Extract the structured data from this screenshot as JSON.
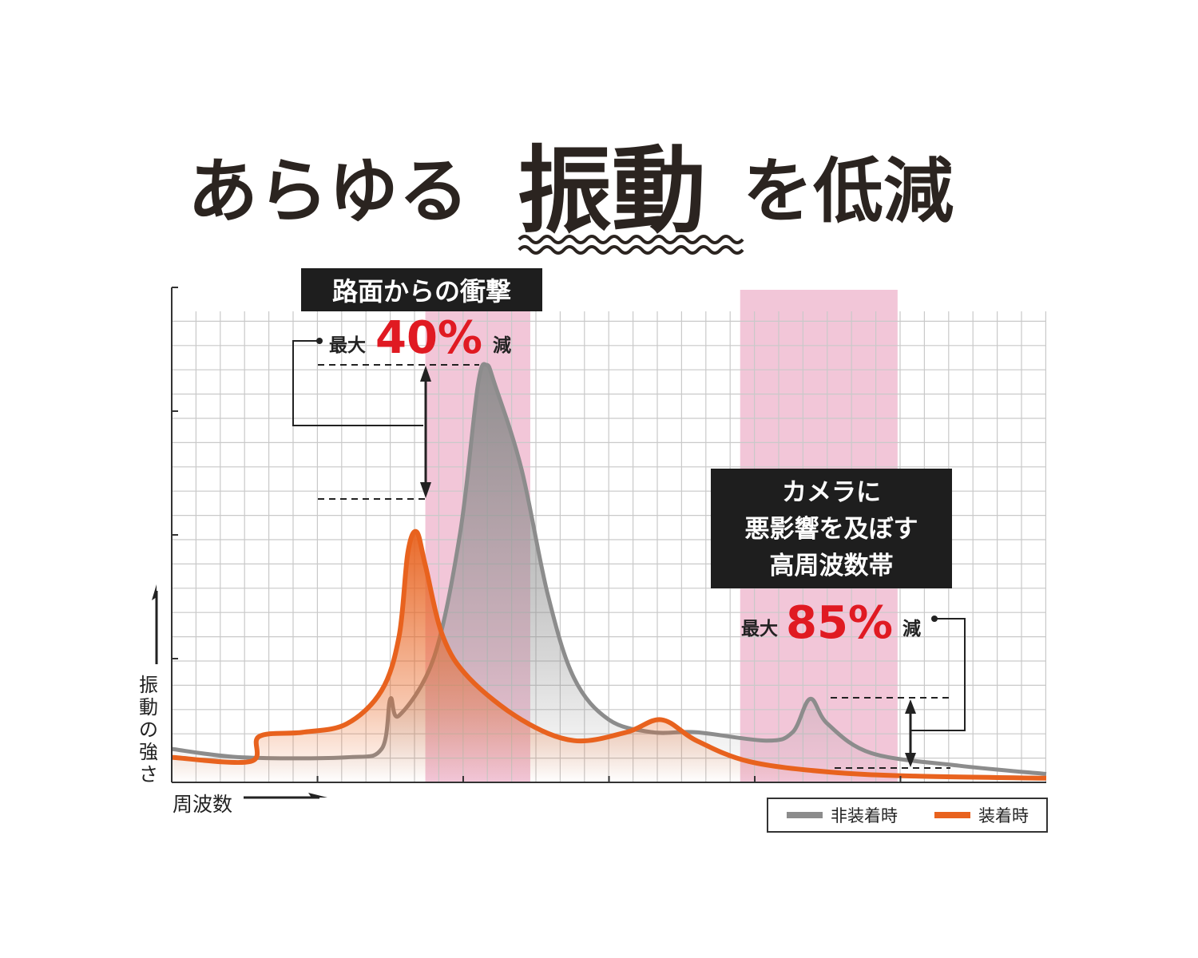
{
  "title": {
    "prefix": "あらゆる",
    "emphasis": "振動",
    "suffix": "を低減"
  },
  "chart_data": {
    "type": "area",
    "xlabel": "周波数",
    "ylabel": "振動の強さ",
    "grid": true,
    "legend_position": "bottom-right",
    "series": [
      {
        "name": "非装着時",
        "color": "#8c8c8c",
        "points": [
          [
            0.0,
            0.08
          ],
          [
            0.08,
            0.06
          ],
          [
            0.2,
            0.06
          ],
          [
            0.24,
            0.08
          ],
          [
            0.25,
            0.2
          ],
          [
            0.26,
            0.16
          ],
          [
            0.3,
            0.3
          ],
          [
            0.33,
            0.6
          ],
          [
            0.35,
            0.95
          ],
          [
            0.36,
            1.0
          ],
          [
            0.37,
            0.95
          ],
          [
            0.4,
            0.75
          ],
          [
            0.43,
            0.45
          ],
          [
            0.46,
            0.25
          ],
          [
            0.5,
            0.15
          ],
          [
            0.55,
            0.12
          ],
          [
            0.6,
            0.12
          ],
          [
            0.68,
            0.1
          ],
          [
            0.71,
            0.12
          ],
          [
            0.73,
            0.2
          ],
          [
            0.75,
            0.14
          ],
          [
            0.8,
            0.07
          ],
          [
            0.9,
            0.04
          ],
          [
            1.0,
            0.02
          ]
        ]
      },
      {
        "name": "装着時",
        "color": "#e8621e",
        "points": [
          [
            0.0,
            0.06
          ],
          [
            0.09,
            0.05
          ],
          [
            0.1,
            0.11
          ],
          [
            0.15,
            0.12
          ],
          [
            0.2,
            0.14
          ],
          [
            0.24,
            0.22
          ],
          [
            0.26,
            0.35
          ],
          [
            0.27,
            0.55
          ],
          [
            0.28,
            0.6
          ],
          [
            0.29,
            0.52
          ],
          [
            0.31,
            0.35
          ],
          [
            0.34,
            0.25
          ],
          [
            0.4,
            0.15
          ],
          [
            0.46,
            0.1
          ],
          [
            0.52,
            0.12
          ],
          [
            0.56,
            0.15
          ],
          [
            0.6,
            0.1
          ],
          [
            0.66,
            0.05
          ],
          [
            0.75,
            0.025
          ],
          [
            0.85,
            0.015
          ],
          [
            1.0,
            0.01
          ]
        ]
      }
    ],
    "highlight_bands": [
      {
        "from": 0.29,
        "to": 0.41,
        "label": "路面からの衝撃"
      },
      {
        "from": 0.65,
        "to": 0.83,
        "label": "カメラに悪影響を及ぼす高周波数帯"
      }
    ]
  },
  "annotations": {
    "road_shock": {
      "label": "路面からの衝撃",
      "prefix": "最大",
      "value": "40%",
      "suffix": "減"
    },
    "high_freq": {
      "line1": "カメラに",
      "line2": "悪影響を及ぼす",
      "line3": "高周波数帯",
      "prefix": "最大",
      "value": "85%",
      "suffix": "減"
    }
  },
  "legend": [
    {
      "label": "非装着時",
      "color": "#8c8c8c"
    },
    {
      "label": "装着時",
      "color": "#e8621e"
    }
  ],
  "colors": {
    "band": "#f2c6d8",
    "highlight_red": "#e01a22",
    "label_box": "#1e1e1e",
    "title_text": "#2b2420"
  }
}
